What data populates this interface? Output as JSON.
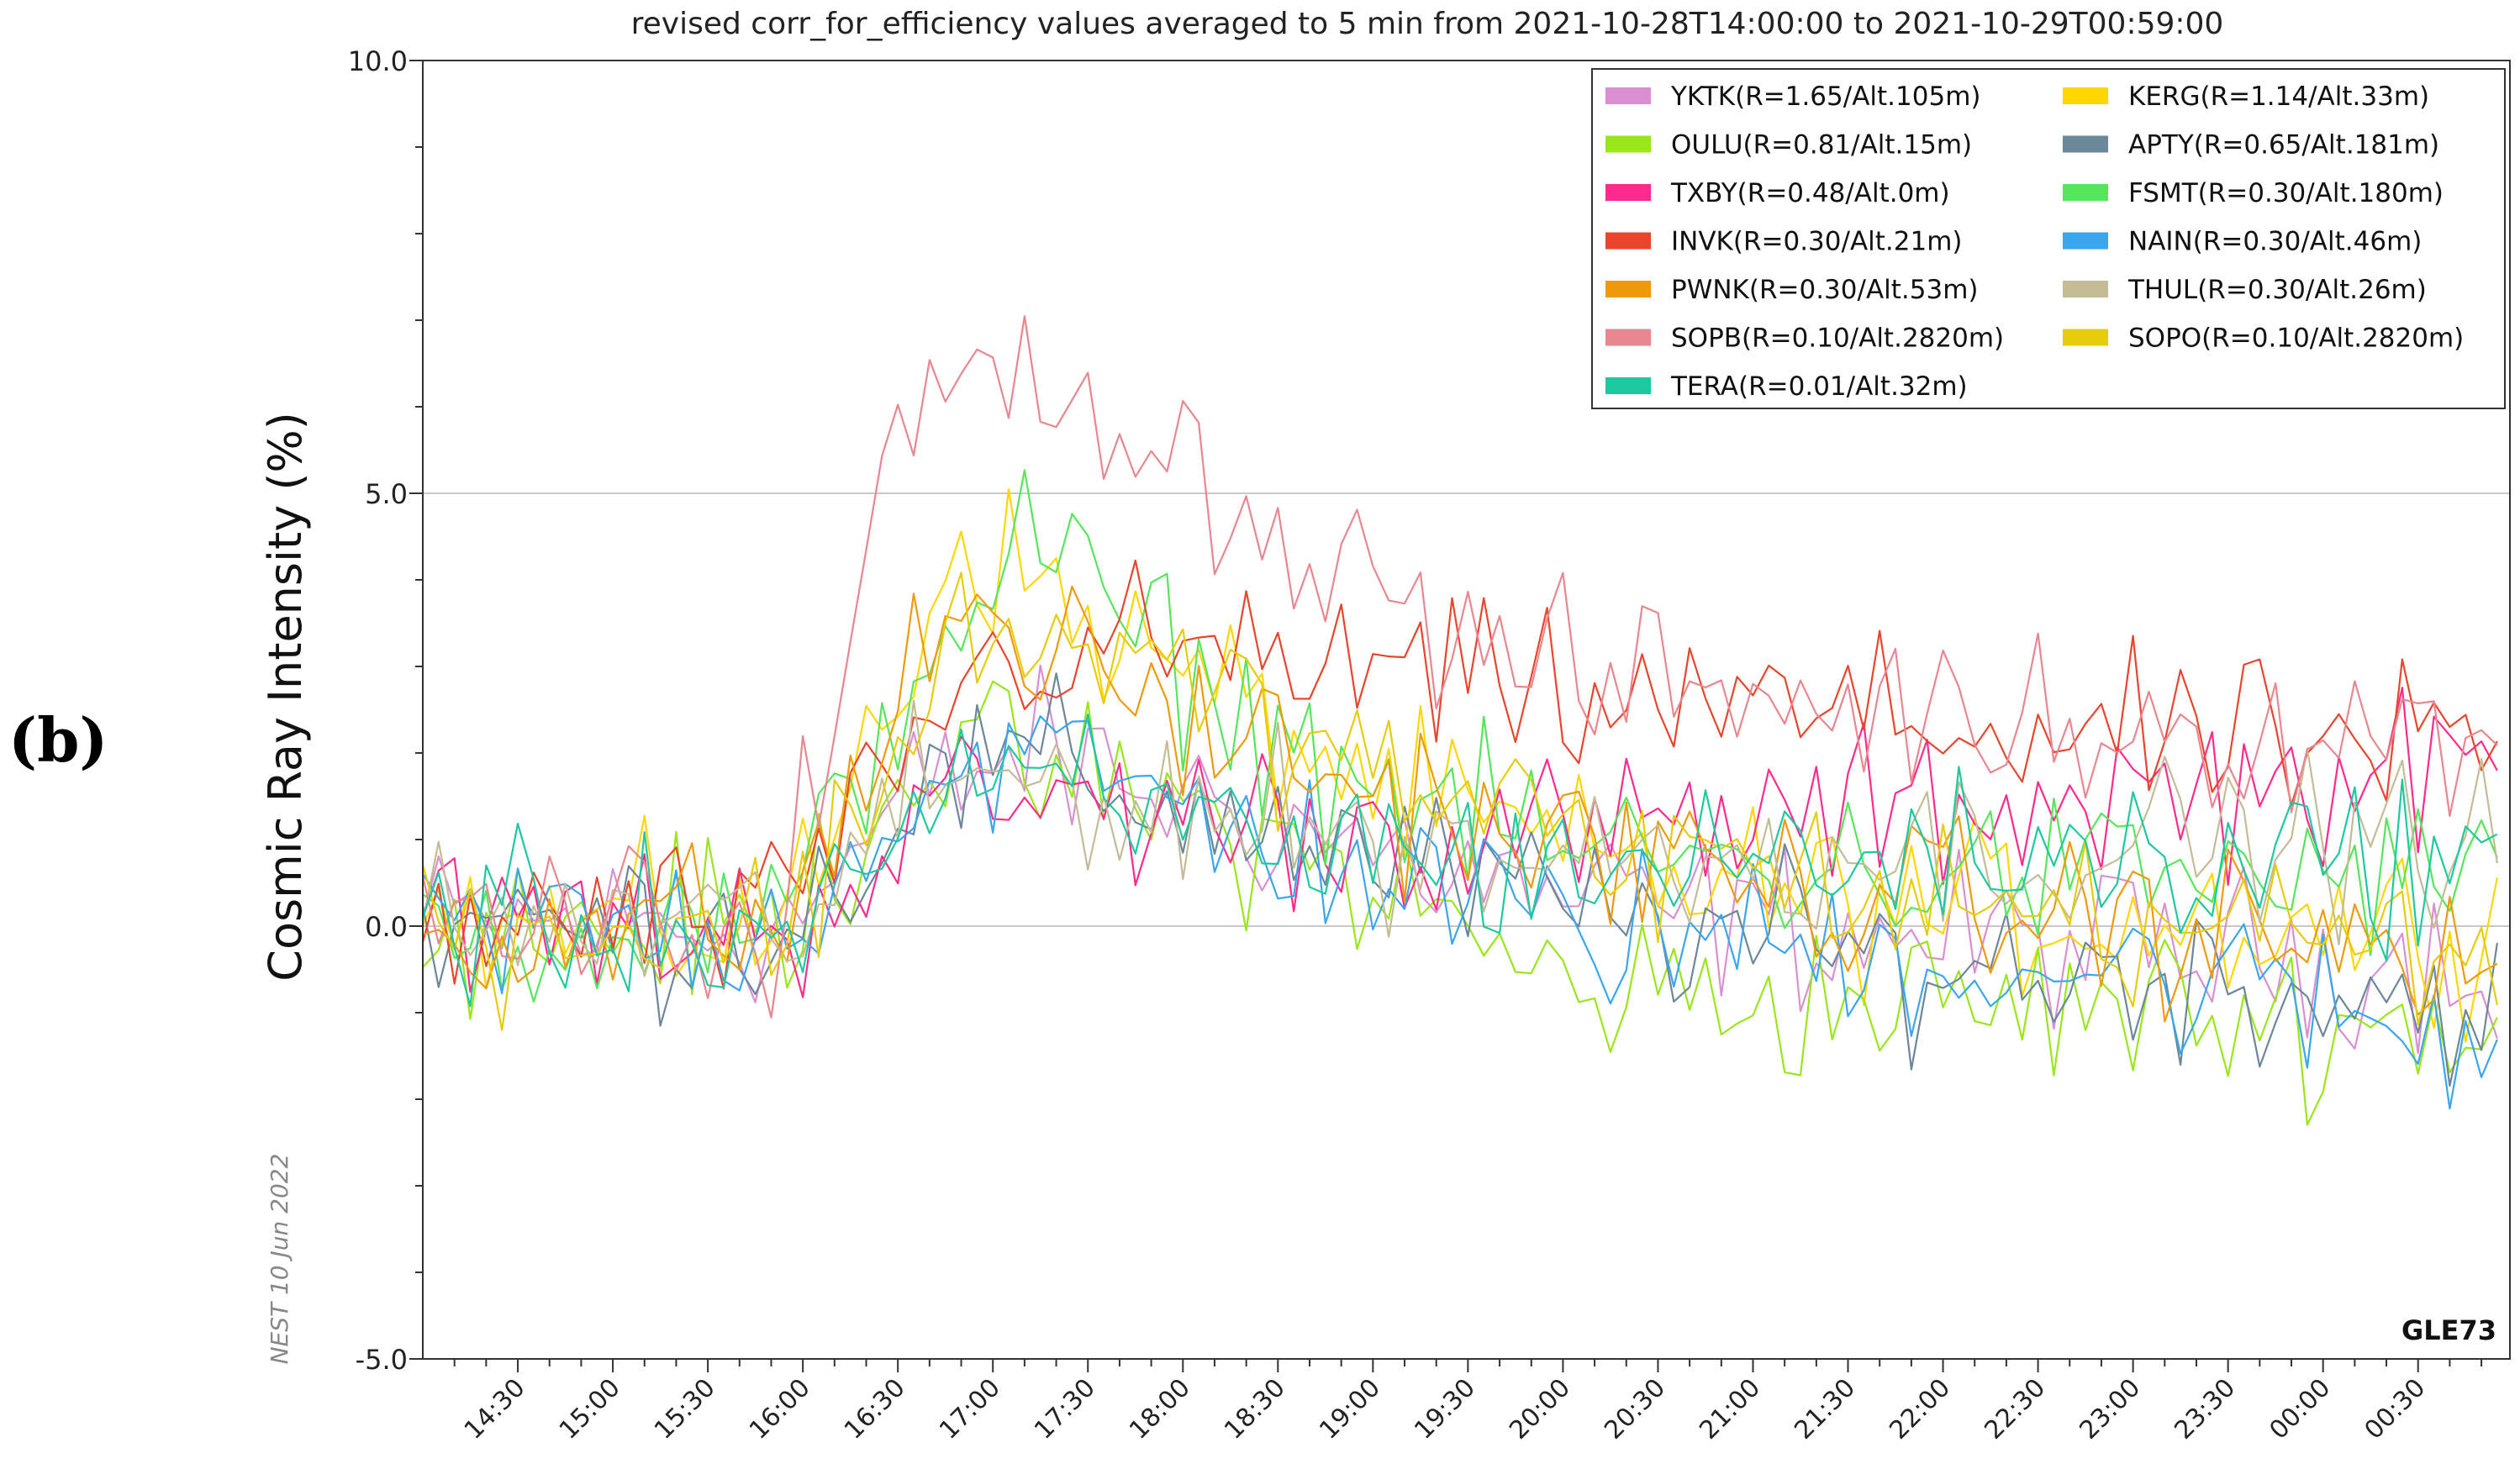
{
  "panel_label": "(b)",
  "chart_data": {
    "type": "line",
    "title": "revised corr_for_efficiency values averaged to 5 min from 2021-10-28T14:00:00 to 2021-10-29T00:59:00",
    "xlabel": "",
    "ylabel": "Cosmic Ray Intensity (%)",
    "ylim": [
      -5.0,
      10.0
    ],
    "yticks": [
      "10.0",
      "5.0",
      "0.0",
      "-5.0"
    ],
    "ytick_values": [
      10,
      5,
      0,
      -5
    ],
    "xlim_minutes": [
      840,
      1499
    ],
    "xticks": [
      "14:30",
      "15:00",
      "15:30",
      "16:00",
      "16:30",
      "17:00",
      "17:30",
      "18:00",
      "18:30",
      "19:00",
      "19:30",
      "20:00",
      "20:30",
      "21:00",
      "21:30",
      "22:00",
      "22:30",
      "23:00",
      "23:30",
      "00:00",
      "00:30"
    ],
    "xtick_minutes": [
      870,
      900,
      930,
      960,
      990,
      1020,
      1050,
      1080,
      1110,
      1140,
      1170,
      1200,
      1230,
      1260,
      1290,
      1320,
      1350,
      1380,
      1410,
      1440,
      1470
    ],
    "grid": "horizontal",
    "legend_position": "top-right",
    "watermark": "NEST 10 Jun 2022",
    "event_label": "GLE73",
    "step_minutes": 5,
    "series": [
      {
        "name": "YKTK(R=1.65/Alt.105m)",
        "color": "#d98fd0",
        "profile": [
          [
            840,
            0
          ],
          [
            955,
            0
          ],
          [
            995,
            1.5
          ],
          [
            1030,
            2.0
          ],
          [
            1080,
            1.5
          ],
          [
            1140,
            0.9
          ],
          [
            1200,
            0.3
          ],
          [
            1300,
            -0.1
          ],
          [
            1400,
            -0.3
          ],
          [
            1499,
            -0.4
          ]
        ]
      },
      {
        "name": "KERG(R=1.14/Alt.33m)",
        "color": "#ffd700",
        "profile": [
          [
            840,
            0
          ],
          [
            955,
            0
          ],
          [
            990,
            2.8
          ],
          [
            1010,
            4.6
          ],
          [
            1030,
            4.0
          ],
          [
            1060,
            3.3
          ],
          [
            1100,
            2.5
          ],
          [
            1140,
            1.6
          ],
          [
            1200,
            0.8
          ],
          [
            1300,
            0.2
          ],
          [
            1400,
            0.1
          ],
          [
            1499,
            0.0
          ]
        ]
      },
      {
        "name": "OULU(R=0.81/Alt.15m)",
        "color": "#99e619",
        "profile": [
          [
            840,
            0
          ],
          [
            955,
            0
          ],
          [
            995,
            2.0
          ],
          [
            1030,
            1.8
          ],
          [
            1080,
            1.3
          ],
          [
            1140,
            0.5
          ],
          [
            1200,
            -0.7
          ],
          [
            1300,
            -0.9
          ],
          [
            1400,
            -1.0
          ],
          [
            1499,
            -1.2
          ]
        ]
      },
      {
        "name": "APTY(R=0.65/Alt.181m)",
        "color": "#6a8899",
        "profile": [
          [
            840,
            0
          ],
          [
            955,
            0
          ],
          [
            995,
            1.5
          ],
          [
            1030,
            1.9
          ],
          [
            1080,
            1.4
          ],
          [
            1140,
            0.8
          ],
          [
            1200,
            0.2
          ],
          [
            1300,
            -0.4
          ],
          [
            1400,
            -0.6
          ],
          [
            1499,
            -0.9
          ]
        ]
      },
      {
        "name": "TXBY(R=0.48/Alt.0m)",
        "color": "#ff2a8e",
        "profile": [
          [
            840,
            0
          ],
          [
            955,
            0
          ],
          [
            995,
            1.2
          ],
          [
            1030,
            1.5
          ],
          [
            1080,
            1.3
          ],
          [
            1140,
            1.1
          ],
          [
            1200,
            1.0
          ],
          [
            1300,
            1.3
          ],
          [
            1400,
            1.6
          ],
          [
            1499,
            1.8
          ]
        ]
      },
      {
        "name": "FSMT(R=0.30/Alt.180m)",
        "color": "#55e65a",
        "profile": [
          [
            840,
            0
          ],
          [
            955,
            0
          ],
          [
            995,
            3.0
          ],
          [
            1030,
            4.5
          ],
          [
            1060,
            3.5
          ],
          [
            1100,
            2.4
          ],
          [
            1140,
            1.6
          ],
          [
            1200,
            0.9
          ],
          [
            1300,
            0.6
          ],
          [
            1400,
            0.6
          ],
          [
            1499,
            0.5
          ]
        ]
      },
      {
        "name": "INVK(R=0.30/Alt.21m)",
        "color": "#e8452c",
        "profile": [
          [
            840,
            0
          ],
          [
            955,
            0
          ],
          [
            995,
            2.3
          ],
          [
            1030,
            3.2
          ],
          [
            1080,
            3.2
          ],
          [
            1140,
            2.9
          ],
          [
            1200,
            2.6
          ],
          [
            1300,
            2.4
          ],
          [
            1400,
            2.1
          ],
          [
            1499,
            2.0
          ]
        ]
      },
      {
        "name": "NAIN(R=0.30/Alt.46m)",
        "color": "#3aa6ee",
        "profile": [
          [
            840,
            0
          ],
          [
            955,
            0
          ],
          [
            995,
            1.6
          ],
          [
            1030,
            2.0
          ],
          [
            1080,
            1.4
          ],
          [
            1140,
            0.6
          ],
          [
            1200,
            0.0
          ],
          [
            1300,
            -0.3
          ],
          [
            1400,
            -0.6
          ],
          [
            1499,
            -1.5
          ]
        ]
      },
      {
        "name": "PWNK(R=0.30/Alt.53m)",
        "color": "#ee9a0c",
        "profile": [
          [
            840,
            0
          ],
          [
            955,
            0
          ],
          [
            990,
            2.5
          ],
          [
            1010,
            3.8
          ],
          [
            1030,
            3.3
          ],
          [
            1080,
            2.4
          ],
          [
            1140,
            1.6
          ],
          [
            1200,
            0.9
          ],
          [
            1300,
            0.3
          ],
          [
            1400,
            0.0
          ],
          [
            1499,
            -0.5
          ]
        ]
      },
      {
        "name": "THUL(R=0.30/Alt.26m)",
        "color": "#c4bc96",
        "profile": [
          [
            840,
            0
          ],
          [
            955,
            0
          ],
          [
            995,
            1.4
          ],
          [
            1030,
            1.8
          ],
          [
            1080,
            1.4
          ],
          [
            1140,
            1.0
          ],
          [
            1200,
            0.8
          ],
          [
            1300,
            0.9
          ],
          [
            1400,
            1.0
          ],
          [
            1499,
            1.0
          ]
        ]
      },
      {
        "name": "SOPB(R=0.10/Alt.2820m)",
        "color": "#e8878f",
        "profile": [
          [
            840,
            0
          ],
          [
            950,
            0
          ],
          [
            970,
            2.5
          ],
          [
            985,
            4.8
          ],
          [
            1000,
            6.3
          ],
          [
            1030,
            6.2
          ],
          [
            1060,
            6.0
          ],
          [
            1090,
            5.1
          ],
          [
            1120,
            4.3
          ],
          [
            1150,
            3.8
          ],
          [
            1170,
            3.2
          ],
          [
            1200,
            2.9
          ],
          [
            1300,
            2.5
          ],
          [
            1400,
            2.3
          ],
          [
            1499,
            2.2
          ]
        ]
      },
      {
        "name": "SOPO(R=0.10/Alt.2820m)",
        "color": "#e6cc0a",
        "profile": [
          [
            840,
            0
          ],
          [
            955,
            0
          ],
          [
            990,
            2.0
          ],
          [
            1010,
            3.6
          ],
          [
            1030,
            3.4
          ],
          [
            1080,
            2.8
          ],
          [
            1140,
            1.8
          ],
          [
            1200,
            1.0
          ],
          [
            1300,
            0.4
          ],
          [
            1400,
            0.0
          ],
          [
            1499,
            -0.3
          ]
        ]
      },
      {
        "name": "TERA(R=0.01/Alt.32m)",
        "color": "#1ec9a0",
        "profile": [
          [
            840,
            0
          ],
          [
            955,
            0
          ],
          [
            995,
            1.2
          ],
          [
            1030,
            1.6
          ],
          [
            1080,
            1.2
          ],
          [
            1140,
            0.9
          ],
          [
            1200,
            0.7
          ],
          [
            1300,
            0.8
          ],
          [
            1400,
            0.8
          ],
          [
            1499,
            0.8
          ]
        ]
      }
    ]
  }
}
